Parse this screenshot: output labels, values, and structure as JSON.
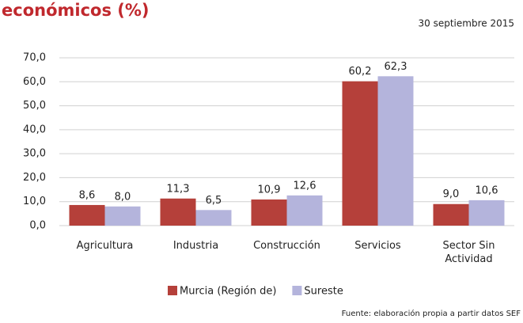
{
  "chart_data": {
    "type": "bar",
    "title": "económicos (%)",
    "subtitle": "30 septiembre 2015",
    "source": "Fuente: elaboración propia a partir datos SEF",
    "categories": [
      "Agricultura",
      "Industria",
      "Construcción",
      "Servicios",
      "Sector Sin Actividad"
    ],
    "series": [
      {
        "name": "Murcia (Región de)",
        "color": "#b5403a",
        "values": [
          8.6,
          11.3,
          10.9,
          60.2,
          9.0
        ],
        "value_labels": [
          "8,6",
          "11,3",
          "10,9",
          "60,2",
          "9,0"
        ]
      },
      {
        "name": "Sureste",
        "color": "#b4b4dc",
        "values": [
          8.0,
          6.5,
          12.6,
          62.3,
          10.6
        ],
        "value_labels": [
          "8,0",
          "6,5",
          "12,6",
          "62,3",
          "10,6"
        ]
      }
    ],
    "ylim": [
      0,
      70
    ],
    "yticks": [
      {
        "value": 0,
        "label": "0,0"
      },
      {
        "value": 10,
        "label": "10,0"
      },
      {
        "value": 20,
        "label": "20,0"
      },
      {
        "value": 30,
        "label": "30,0"
      },
      {
        "value": 40,
        "label": "40,0"
      },
      {
        "value": 50,
        "label": "50,0"
      },
      {
        "value": 60,
        "label": "60,0"
      },
      {
        "value": 70,
        "label": "70,0"
      }
    ],
    "grid": true,
    "legend": "bottom"
  }
}
